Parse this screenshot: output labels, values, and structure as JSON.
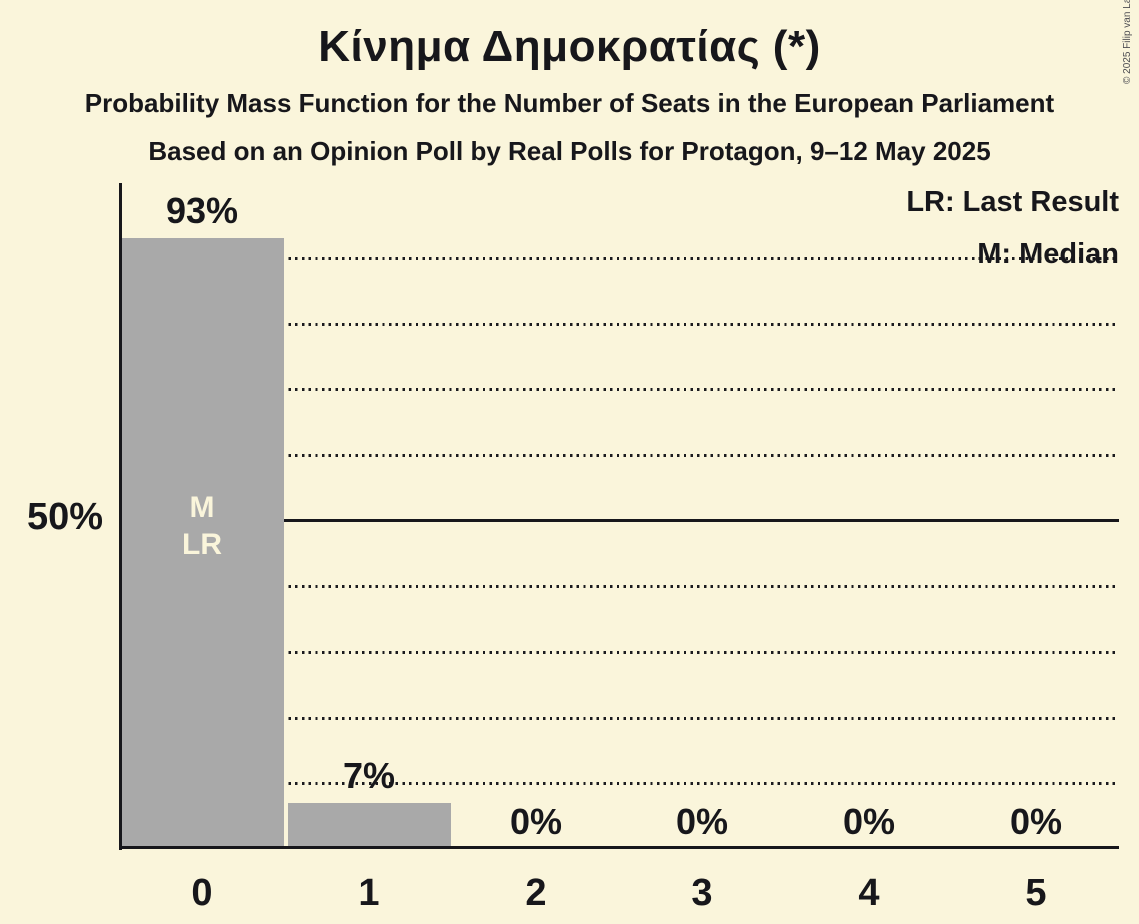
{
  "title": "Κίνημα Δημοκρατίας (*)",
  "subtitle": "Probability Mass Function for the Number of Seats in the European Parliament",
  "subsubtitle": "Based on an Opinion Poll by Real Polls for Protagon, 9–12 May 2025",
  "copyright": "© 2025 Filip van Laenen",
  "legend": {
    "lr": "LR: Last Result",
    "m": "M: Median"
  },
  "colors": {
    "background": "#FAF5DB",
    "bar": "#A9A9A9",
    "text": "#17171B",
    "in_bar_text": "#FAF5DB"
  },
  "chart_data": {
    "type": "bar",
    "title": "Κίνημα Δημοκρατίας (*)",
    "xlabel": "",
    "ylabel": "",
    "categories": [
      "0",
      "1",
      "2",
      "3",
      "4",
      "5"
    ],
    "values": [
      93,
      7,
      0,
      0,
      0,
      0
    ],
    "value_labels": [
      "93%",
      "7%",
      "0%",
      "0%",
      "0%",
      "0%"
    ],
    "ylim": [
      0,
      100
    ],
    "y_tick_labels": [
      "50%"
    ],
    "y_tick_pct": [
      50
    ],
    "y_gridlines_pct": [
      10,
      20,
      30,
      40,
      60,
      70,
      80,
      90
    ],
    "y_solid_line_pct": 50,
    "grid": "dotted horizontal, solid at 50%",
    "legend_position": "top-right",
    "legend_entries": [
      "LR: Last Result",
      "M: Median"
    ],
    "bar_annotations": [
      {
        "category": "0",
        "lines": [
          "M",
          "LR"
        ]
      }
    ]
  }
}
